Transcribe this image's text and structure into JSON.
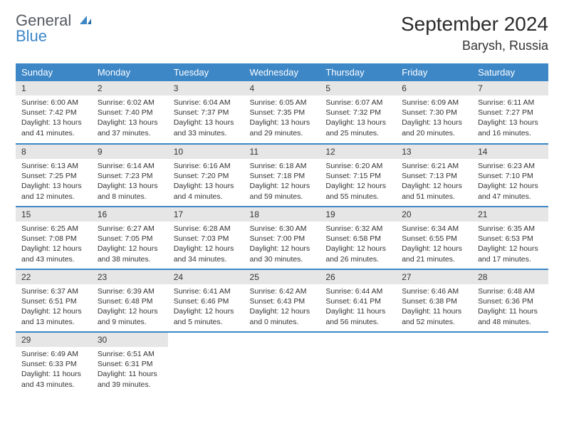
{
  "logo": {
    "line1": "General",
    "line2": "Blue"
  },
  "title": "September 2024",
  "location": "Barysh, Russia",
  "colors": {
    "header_bg": "#3d87c7",
    "row_divider": "#3d87c7",
    "daynum_bg": "#e6e6e6",
    "page_bg": "#ffffff"
  },
  "weekdays": [
    "Sunday",
    "Monday",
    "Tuesday",
    "Wednesday",
    "Thursday",
    "Friday",
    "Saturday"
  ],
  "weeks": [
    [
      {
        "n": "1",
        "sr": "Sunrise: 6:00 AM",
        "ss": "Sunset: 7:42 PM",
        "dl": "Daylight: 13 hours and 41 minutes."
      },
      {
        "n": "2",
        "sr": "Sunrise: 6:02 AM",
        "ss": "Sunset: 7:40 PM",
        "dl": "Daylight: 13 hours and 37 minutes."
      },
      {
        "n": "3",
        "sr": "Sunrise: 6:04 AM",
        "ss": "Sunset: 7:37 PM",
        "dl": "Daylight: 13 hours and 33 minutes."
      },
      {
        "n": "4",
        "sr": "Sunrise: 6:05 AM",
        "ss": "Sunset: 7:35 PM",
        "dl": "Daylight: 13 hours and 29 minutes."
      },
      {
        "n": "5",
        "sr": "Sunrise: 6:07 AM",
        "ss": "Sunset: 7:32 PM",
        "dl": "Daylight: 13 hours and 25 minutes."
      },
      {
        "n": "6",
        "sr": "Sunrise: 6:09 AM",
        "ss": "Sunset: 7:30 PM",
        "dl": "Daylight: 13 hours and 20 minutes."
      },
      {
        "n": "7",
        "sr": "Sunrise: 6:11 AM",
        "ss": "Sunset: 7:27 PM",
        "dl": "Daylight: 13 hours and 16 minutes."
      }
    ],
    [
      {
        "n": "8",
        "sr": "Sunrise: 6:13 AM",
        "ss": "Sunset: 7:25 PM",
        "dl": "Daylight: 13 hours and 12 minutes."
      },
      {
        "n": "9",
        "sr": "Sunrise: 6:14 AM",
        "ss": "Sunset: 7:23 PM",
        "dl": "Daylight: 13 hours and 8 minutes."
      },
      {
        "n": "10",
        "sr": "Sunrise: 6:16 AM",
        "ss": "Sunset: 7:20 PM",
        "dl": "Daylight: 13 hours and 4 minutes."
      },
      {
        "n": "11",
        "sr": "Sunrise: 6:18 AM",
        "ss": "Sunset: 7:18 PM",
        "dl": "Daylight: 12 hours and 59 minutes."
      },
      {
        "n": "12",
        "sr": "Sunrise: 6:20 AM",
        "ss": "Sunset: 7:15 PM",
        "dl": "Daylight: 12 hours and 55 minutes."
      },
      {
        "n": "13",
        "sr": "Sunrise: 6:21 AM",
        "ss": "Sunset: 7:13 PM",
        "dl": "Daylight: 12 hours and 51 minutes."
      },
      {
        "n": "14",
        "sr": "Sunrise: 6:23 AM",
        "ss": "Sunset: 7:10 PM",
        "dl": "Daylight: 12 hours and 47 minutes."
      }
    ],
    [
      {
        "n": "15",
        "sr": "Sunrise: 6:25 AM",
        "ss": "Sunset: 7:08 PM",
        "dl": "Daylight: 12 hours and 43 minutes."
      },
      {
        "n": "16",
        "sr": "Sunrise: 6:27 AM",
        "ss": "Sunset: 7:05 PM",
        "dl": "Daylight: 12 hours and 38 minutes."
      },
      {
        "n": "17",
        "sr": "Sunrise: 6:28 AM",
        "ss": "Sunset: 7:03 PM",
        "dl": "Daylight: 12 hours and 34 minutes."
      },
      {
        "n": "18",
        "sr": "Sunrise: 6:30 AM",
        "ss": "Sunset: 7:00 PM",
        "dl": "Daylight: 12 hours and 30 minutes."
      },
      {
        "n": "19",
        "sr": "Sunrise: 6:32 AM",
        "ss": "Sunset: 6:58 PM",
        "dl": "Daylight: 12 hours and 26 minutes."
      },
      {
        "n": "20",
        "sr": "Sunrise: 6:34 AM",
        "ss": "Sunset: 6:55 PM",
        "dl": "Daylight: 12 hours and 21 minutes."
      },
      {
        "n": "21",
        "sr": "Sunrise: 6:35 AM",
        "ss": "Sunset: 6:53 PM",
        "dl": "Daylight: 12 hours and 17 minutes."
      }
    ],
    [
      {
        "n": "22",
        "sr": "Sunrise: 6:37 AM",
        "ss": "Sunset: 6:51 PM",
        "dl": "Daylight: 12 hours and 13 minutes."
      },
      {
        "n": "23",
        "sr": "Sunrise: 6:39 AM",
        "ss": "Sunset: 6:48 PM",
        "dl": "Daylight: 12 hours and 9 minutes."
      },
      {
        "n": "24",
        "sr": "Sunrise: 6:41 AM",
        "ss": "Sunset: 6:46 PM",
        "dl": "Daylight: 12 hours and 5 minutes."
      },
      {
        "n": "25",
        "sr": "Sunrise: 6:42 AM",
        "ss": "Sunset: 6:43 PM",
        "dl": "Daylight: 12 hours and 0 minutes."
      },
      {
        "n": "26",
        "sr": "Sunrise: 6:44 AM",
        "ss": "Sunset: 6:41 PM",
        "dl": "Daylight: 11 hours and 56 minutes."
      },
      {
        "n": "27",
        "sr": "Sunrise: 6:46 AM",
        "ss": "Sunset: 6:38 PM",
        "dl": "Daylight: 11 hours and 52 minutes."
      },
      {
        "n": "28",
        "sr": "Sunrise: 6:48 AM",
        "ss": "Sunset: 6:36 PM",
        "dl": "Daylight: 11 hours and 48 minutes."
      }
    ],
    [
      {
        "n": "29",
        "sr": "Sunrise: 6:49 AM",
        "ss": "Sunset: 6:33 PM",
        "dl": "Daylight: 11 hours and 43 minutes."
      },
      {
        "n": "30",
        "sr": "Sunrise: 6:51 AM",
        "ss": "Sunset: 6:31 PM",
        "dl": "Daylight: 11 hours and 39 minutes."
      },
      null,
      null,
      null,
      null,
      null
    ]
  ]
}
